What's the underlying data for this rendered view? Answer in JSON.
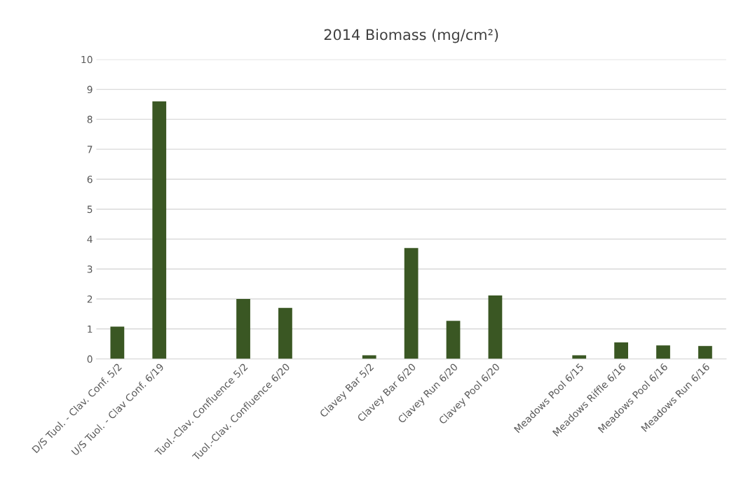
{
  "chart_data": {
    "type": "bar",
    "title": "2014 Biomass (mg/cm²)",
    "categories": [
      "D/S Tuol. - Clav. Conf. 5/2",
      "U/S Tuol. - Clav Conf. 6/19",
      null,
      "Tuol.-Clav. Confluence 5/2",
      "Tuol.-Clav. Confluence 6/20",
      null,
      "Clavey Bar 5/2",
      "Clavey Bar 6/20",
      "Clavey Run 6/20",
      "Clavey Pool 6/20",
      null,
      "Meadows Pool 6/15",
      "Meadows Riffle 6/16",
      "Meadows Pool 6/16",
      "Meadows Run 6/16"
    ],
    "values": [
      1.08,
      8.6,
      null,
      2.0,
      1.7,
      null,
      0.12,
      3.7,
      1.27,
      2.12,
      null,
      0.12,
      0.55,
      0.45,
      0.43
    ],
    "color": "#3a5723",
    "ylim": [
      0,
      10
    ],
    "yticks": [
      0,
      1,
      2,
      3,
      4,
      5,
      6,
      7,
      8,
      9,
      10
    ],
    "grid": "y",
    "legend": false
  }
}
